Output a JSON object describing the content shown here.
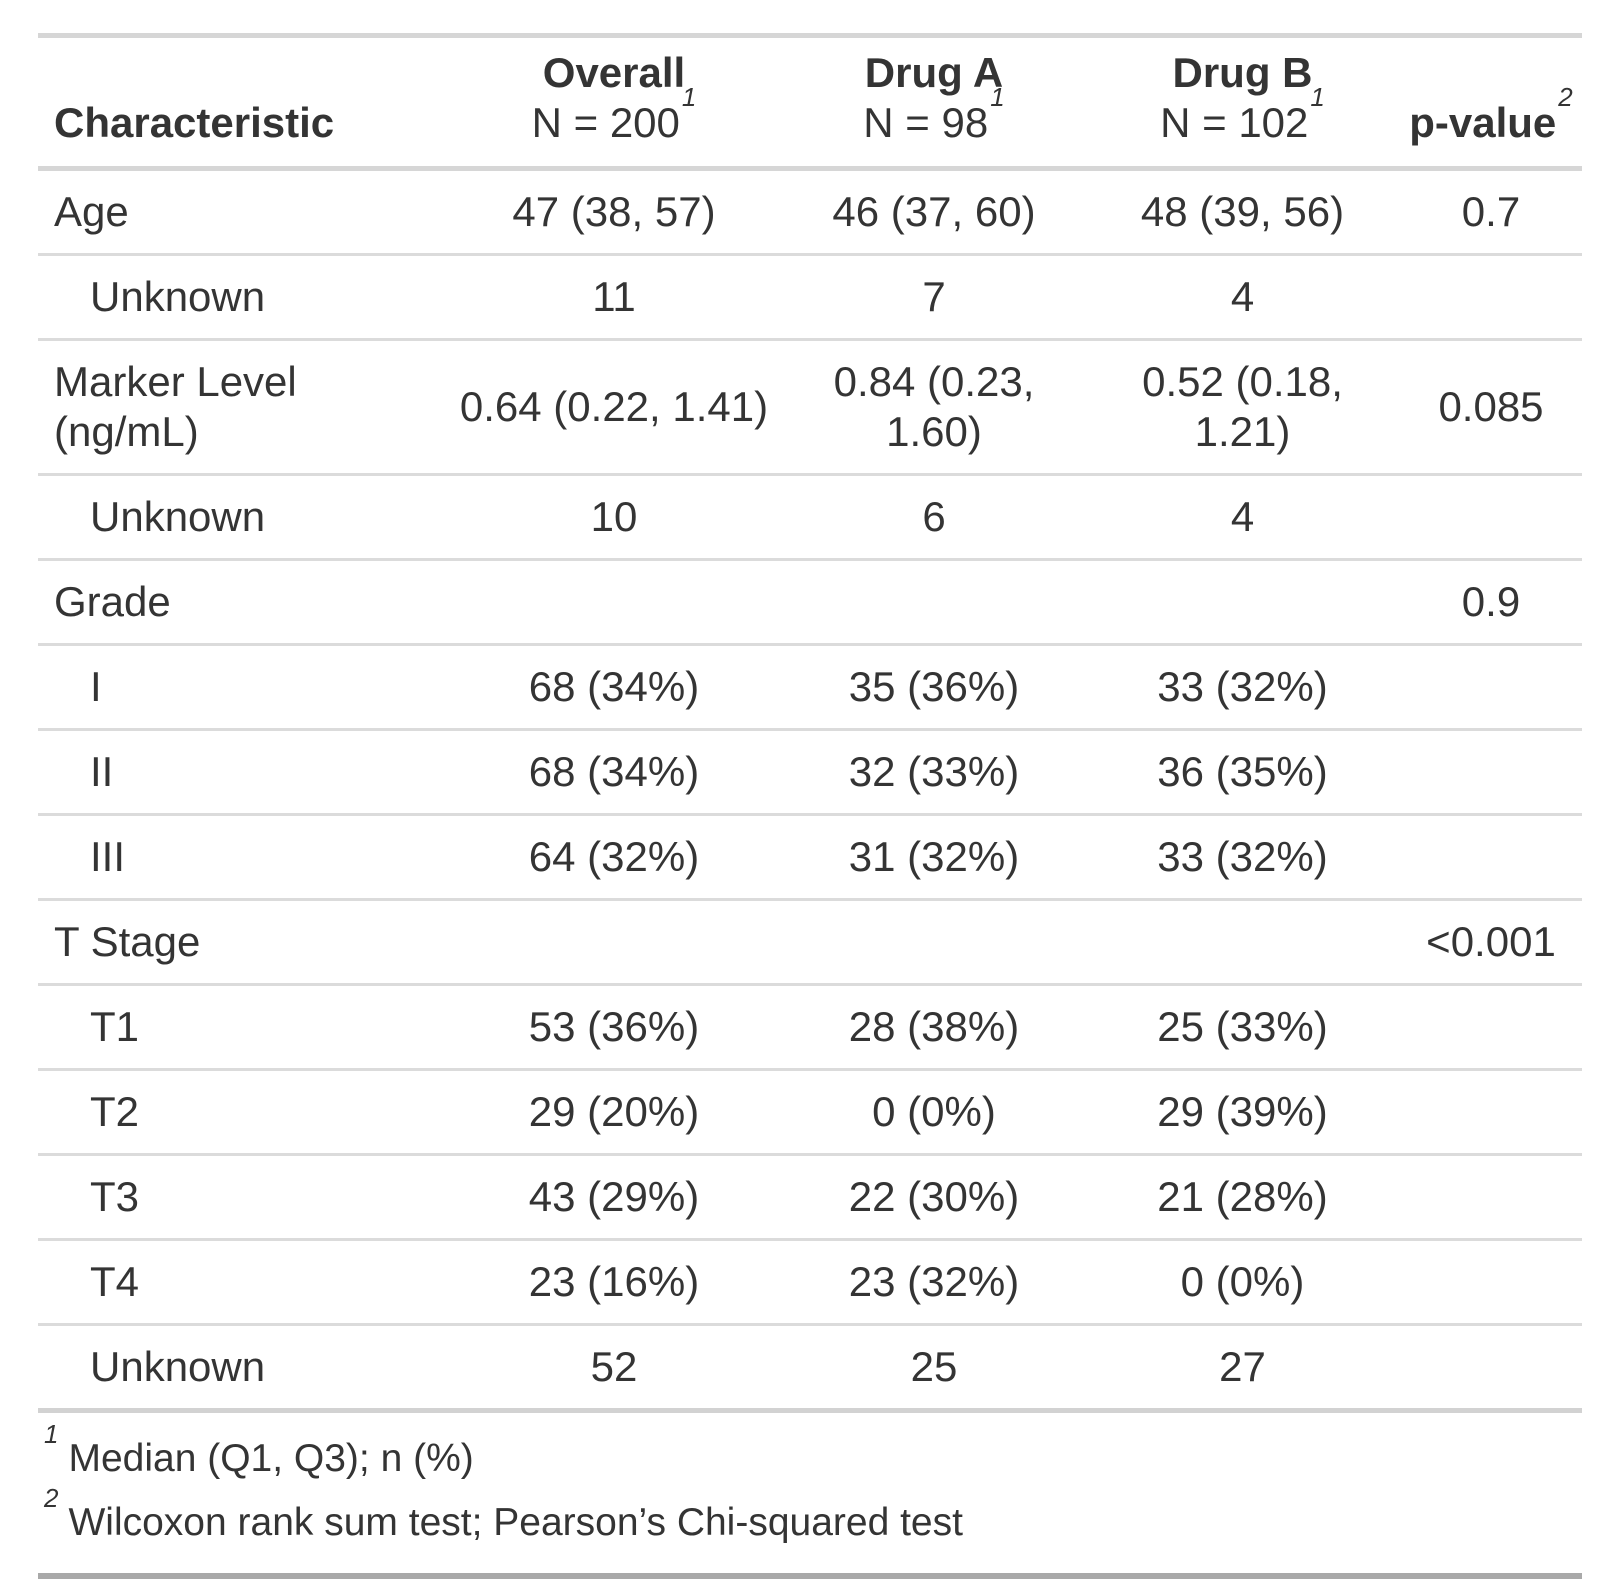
{
  "chart_data": {
    "type": "table",
    "title": "",
    "columns": [
      {
        "label": "Characteristic",
        "sub": "",
        "sup": ""
      },
      {
        "label": "Overall",
        "sub": "N = 200",
        "sup": "1"
      },
      {
        "label": "Drug A",
        "sub": "N = 98",
        "sup": "1"
      },
      {
        "label": "Drug B",
        "sub": "N = 102",
        "sup": "1"
      },
      {
        "label": "p-value",
        "sub": "",
        "sup": "2"
      }
    ],
    "rows": [
      {
        "label": "Age",
        "indent": false,
        "cells": [
          "47 (38, 57)",
          "46 (37, 60)",
          "48 (39, 56)",
          "0.7"
        ]
      },
      {
        "label": "Unknown",
        "indent": true,
        "cells": [
          "11",
          "7",
          "4",
          ""
        ]
      },
      {
        "label": "Marker Level (ng/mL)",
        "indent": false,
        "cells": [
          "0.64 (0.22, 1.41)",
          "0.84 (0.23, 1.60)",
          "0.52 (0.18, 1.21)",
          "0.085"
        ]
      },
      {
        "label": "Unknown",
        "indent": true,
        "cells": [
          "10",
          "6",
          "4",
          ""
        ]
      },
      {
        "label": "Grade",
        "indent": false,
        "cells": [
          "",
          "",
          "",
          "0.9"
        ]
      },
      {
        "label": "I",
        "indent": true,
        "cells": [
          "68 (34%)",
          "35 (36%)",
          "33 (32%)",
          ""
        ]
      },
      {
        "label": "II",
        "indent": true,
        "cells": [
          "68 (34%)",
          "32 (33%)",
          "36 (35%)",
          ""
        ]
      },
      {
        "label": "III",
        "indent": true,
        "cells": [
          "64 (32%)",
          "31 (32%)",
          "33 (32%)",
          ""
        ]
      },
      {
        "label": "T Stage",
        "indent": false,
        "cells": [
          "",
          "",
          "",
          "<0.001"
        ]
      },
      {
        "label": "T1",
        "indent": true,
        "cells": [
          "53 (36%)",
          "28 (38%)",
          "25 (33%)",
          ""
        ]
      },
      {
        "label": "T2",
        "indent": true,
        "cells": [
          "29 (20%)",
          "0 (0%)",
          "29 (39%)",
          ""
        ]
      },
      {
        "label": "T3",
        "indent": true,
        "cells": [
          "43 (29%)",
          "22 (30%)",
          "21 (28%)",
          ""
        ]
      },
      {
        "label": "T4",
        "indent": true,
        "cells": [
          "23 (16%)",
          "23 (32%)",
          "0 (0%)",
          ""
        ]
      },
      {
        "label": "Unknown",
        "indent": true,
        "cells": [
          "52",
          "25",
          "27",
          ""
        ]
      }
    ],
    "footnotes": [
      {
        "mark": "1",
        "text": "Median (Q1, Q3); n (%)"
      },
      {
        "mark": "2",
        "text": "Wilcoxon rank sum test; Pearson’s Chi-squared test"
      }
    ],
    "layout": {
      "value_alignment": "center",
      "label_alignment": "left",
      "border_color_light": "#d6d6d6",
      "border_color_dark": "#a9a9a9",
      "text_color": "#343434",
      "background": "#ffffff"
    }
  }
}
